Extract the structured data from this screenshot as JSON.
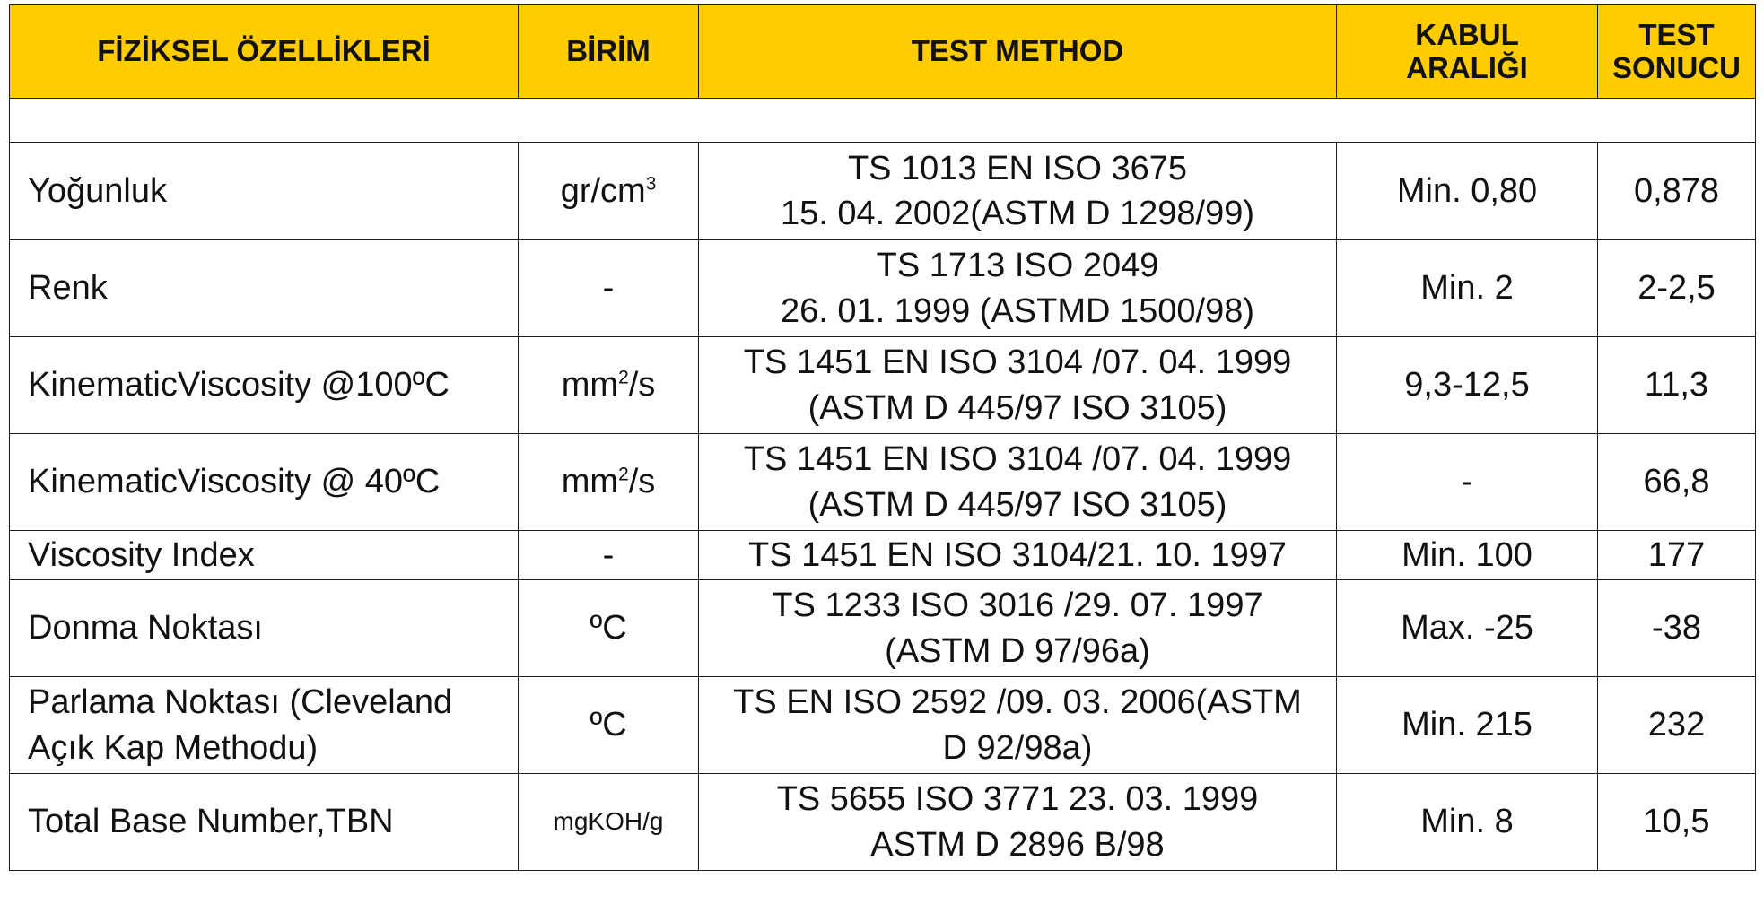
{
  "header": {
    "col1": "FİZİKSEL ÖZELLİKLERİ",
    "col2": "BİRİM",
    "col3": "TEST METHOD",
    "col4_line1": "KABUL",
    "col4_line2": "ARALIĞI",
    "col5_line1": "TEST",
    "col5_line2": "SONUCU"
  },
  "rows": [
    {
      "property": "Yoğunluk",
      "unit_base": "gr/cm",
      "unit_sup": "3",
      "unit_after": "",
      "method_line1": "TS 1013 EN ISO 3675",
      "method_line2": "15. 04. 2002(ASTM D 1298/99)",
      "range": "Min. 0,80",
      "result": "0,878"
    },
    {
      "property": "Renk",
      "unit": "-",
      "method_line1": "TS 1713 ISO 2049",
      "method_line2": "26. 01. 1999 (ASTMD 1500/98)",
      "range": "Min. 2",
      "result": "2-2,5"
    },
    {
      "property": "KinematicViscosity @100ºC",
      "unit_base": "mm",
      "unit_sup": "2",
      "unit_after": "/s",
      "method_line1": "TS 1451 EN ISO 3104 /07. 04. 1999",
      "method_line2": "(ASTM D 445/97 ISO 3105)",
      "range": "9,3-12,5",
      "result": "11,3"
    },
    {
      "property": "KinematicViscosity @ 40ºC",
      "unit_base": "mm",
      "unit_sup": "2",
      "unit_after": "/s",
      "method_line1": "TS 1451 EN ISO 3104 /07. 04. 1999",
      "method_line2": "(ASTM D 445/97 ISO 3105)",
      "range": "-",
      "result": "66,8"
    },
    {
      "property": "Viscosity Index",
      "unit": "-",
      "method_line1": "TS 1451 EN ISO 3104/21. 10. 1997",
      "range": "Min. 100",
      "result": "177"
    },
    {
      "property": "Donma Noktası",
      "unit": "ºC",
      "method_line1": "TS 1233 ISO 3016 /29. 07. 1997",
      "method_line2": "(ASTM D 97/96a)",
      "range": "Max. -25",
      "result": "-38"
    },
    {
      "property_line1": "Parlama Noktası (Cleveland",
      "property_line2": "Açık Kap Methodu)",
      "unit": "ºC",
      "method_line1": "TS EN ISO 2592 /09. 03. 2006(ASTM",
      "method_line2": "D 92/98a)",
      "range": "Min. 215",
      "result": "232"
    },
    {
      "property": "Total Base Number,TBN",
      "unit": "mgKOH/g",
      "method_line1": "TS 5655 ISO 3771 23. 03. 1999",
      "method_line2": "ASTM D 2896 B/98",
      "range": "Min. 8",
      "result": "10,5"
    }
  ],
  "colors": {
    "header_background": "#FFCC00",
    "border": "#1a1a1a"
  }
}
